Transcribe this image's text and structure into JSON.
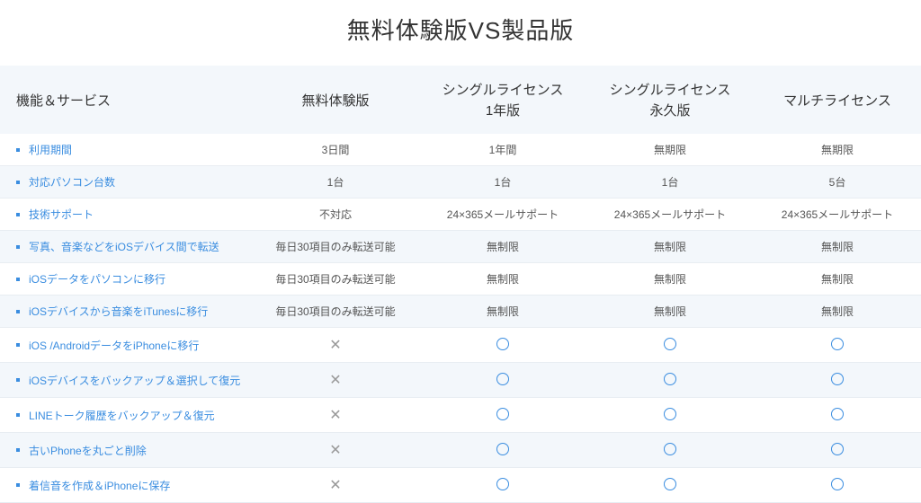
{
  "title": "無料体験版VS製品版",
  "styling": {
    "background_color": "#ffffff",
    "header_row_bg": "#f3f7fb",
    "alt_row_bg": "#f3f7fb",
    "row_border_color": "#e8edf2",
    "feature_text_color": "#3a8de0",
    "bullet_color": "#3a8de0",
    "cell_text_color": "#555555",
    "x_mark_color": "#999999",
    "o_mark_color": "#3a8de0",
    "title_fontsize": 26,
    "header_fontsize": 15,
    "body_fontsize": 12
  },
  "columns": {
    "feature": "機能＆サービス",
    "trial": "無料体験版",
    "single1y_line1": "シングルライセンス",
    "single1y_line2": "1年版",
    "singleperm_line1": "シングルライセンス",
    "singleperm_line2": "永久版",
    "multi": "マルチライセンス"
  },
  "rows": [
    {
      "feature": "利用期間",
      "cells": [
        "3日間",
        "1年間",
        "無期限",
        "無期限"
      ],
      "alt": false
    },
    {
      "feature": "対応パソコン台数",
      "cells": [
        "1台",
        "1台",
        "1台",
        "5台"
      ],
      "alt": true
    },
    {
      "feature": "技術サポート",
      "cells": [
        "不対応",
        "24×365メールサポート",
        "24×365メールサポート",
        "24×365メールサポート"
      ],
      "alt": false
    },
    {
      "feature": "写真、音楽などをiOSデバイス間で転送",
      "cells": [
        "毎日30項目のみ転送可能",
        "無制限",
        "無制限",
        "無制限"
      ],
      "alt": true
    },
    {
      "feature": "iOSデータをパソコンに移行",
      "cells": [
        "毎日30項目のみ転送可能",
        "無制限",
        "無制限",
        "無制限"
      ],
      "alt": false
    },
    {
      "feature": "iOSデバイスから音楽をiTunesに移行",
      "cells": [
        "毎日30項目のみ転送可能",
        "無制限",
        "無制限",
        "無制限"
      ],
      "alt": true
    },
    {
      "feature": "iOS /AndroidデータをiPhoneに移行",
      "cells": [
        "X",
        "O",
        "O",
        "O"
      ],
      "alt": false
    },
    {
      "feature": "iOSデバイスをバックアップ＆選択して復元",
      "cells": [
        "X",
        "O",
        "O",
        "O"
      ],
      "alt": true
    },
    {
      "feature": "LINEトーク履歴をバックアップ＆復元",
      "cells": [
        "X",
        "O",
        "O",
        "O"
      ],
      "alt": false
    },
    {
      "feature": "古いPhoneを丸ごと削除",
      "cells": [
        "X",
        "O",
        "O",
        "O"
      ],
      "alt": true
    },
    {
      "feature": "着信音を作成＆iPhoneに保存",
      "cells": [
        "X",
        "O",
        "O",
        "O"
      ],
      "alt": false
    }
  ]
}
